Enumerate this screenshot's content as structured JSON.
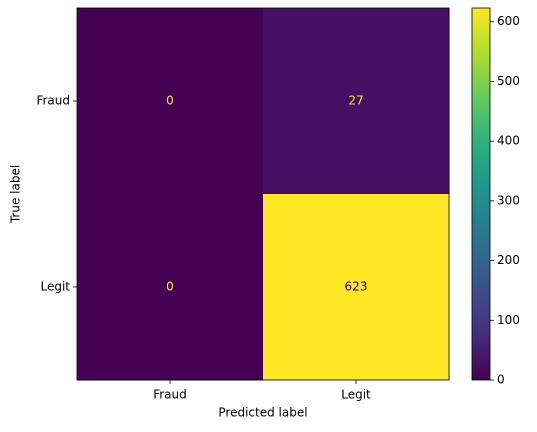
{
  "chart_data": {
    "type": "heatmap",
    "x_categories": [
      "Fraud",
      "Legit"
    ],
    "y_categories": [
      "Fraud",
      "Legit"
    ],
    "values": [
      [
        0,
        27
      ],
      [
        0,
        623
      ]
    ],
    "xlabel": "Predicted label",
    "ylabel": "True label",
    "colormap": "viridis",
    "clim": [
      0,
      623
    ],
    "colorbar_ticks": [
      0,
      100,
      200,
      300,
      400,
      500,
      600
    ]
  }
}
